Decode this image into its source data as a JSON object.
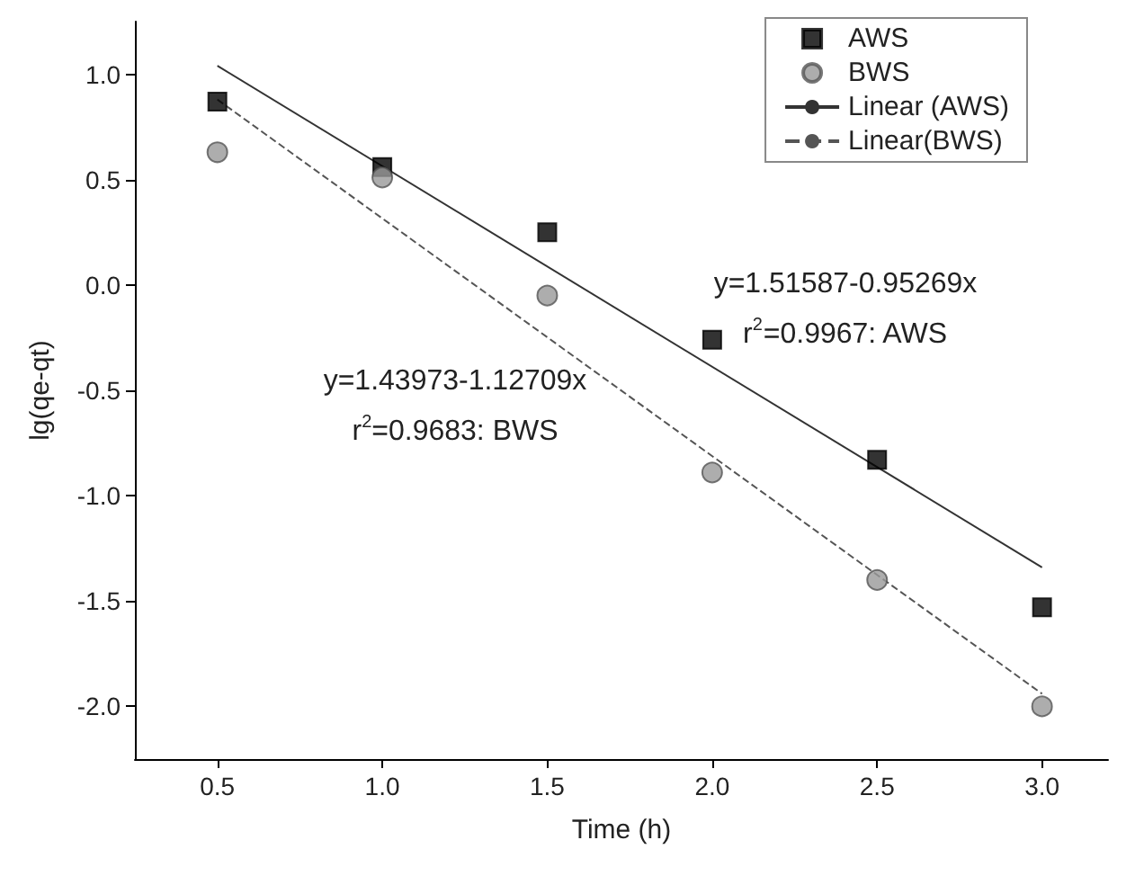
{
  "chart_data": {
    "type": "scatter",
    "xlabel": "Time (h)",
    "ylabel": "lg(qe-qt)",
    "xlim": [
      0.25,
      3.2
    ],
    "ylim": [
      -2.25,
      1.25
    ],
    "xticks": [
      0.5,
      {
        "value": 1,
        "label": "1.0"
      },
      1.5,
      {
        "value": 2,
        "label": "2.0"
      },
      2.5,
      {
        "value": 3,
        "label": "3.0"
      }
    ],
    "yticks": [
      {
        "value": -2,
        "label": "-2.0"
      },
      -1.5,
      {
        "value": -1,
        "label": "-1.0"
      },
      -0.5,
      {
        "value": 0,
        "label": "0.0"
      },
      0.5,
      {
        "value": 1,
        "label": "1.0"
      }
    ],
    "grid": false,
    "legend": "top right",
    "series": [
      {
        "name": "AWS",
        "marker": "square",
        "color": "#000000",
        "x": [
          0.5,
          1.0,
          1.5,
          2.0,
          2.5,
          3.0
        ],
        "values": [
          0.87,
          0.56,
          0.25,
          -0.26,
          -0.83,
          -1.53
        ]
      },
      {
        "name": "BWS",
        "marker": "circle",
        "color": "#999999",
        "x": [
          0.5,
          1.0,
          1.5,
          2.0,
          2.5,
          3.0
        ],
        "values": [
          0.63,
          0.51,
          -0.05,
          -0.89,
          -1.4,
          -2.0
        ]
      },
      {
        "name": "Linear (AWS)",
        "type": "line",
        "marker": "none",
        "line_style": "solid",
        "color": "#333333",
        "x": [
          0.5,
          3.0
        ],
        "values": [
          1.04,
          -1.34
        ]
      },
      {
        "name": "Linear(BWS)",
        "type": "line",
        "marker": "none",
        "line_style": "dashed",
        "color": "#555555",
        "x": [
          0.5,
          3.0
        ],
        "values": [
          0.88,
          -1.94
        ]
      }
    ],
    "annotations": [
      "y=1.51587-0.95269x",
      "r$^{2}$=0.9967: AWS",
      "y=1.43973-1.12709x",
      "r$^{2}$=0.9683: BWS"
    ]
  }
}
